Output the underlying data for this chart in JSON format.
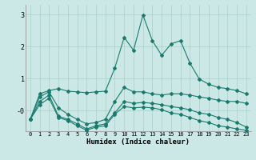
{
  "xlabel": "Humidex (Indice chaleur)",
  "bg_color": "#cce8e6",
  "grid_color": "#aacfcc",
  "line_color": "#1a7a6e",
  "xlim": [
    -0.5,
    23.5
  ],
  "ylim": [
    -0.65,
    3.3
  ],
  "yticks": [
    0,
    1,
    2,
    3
  ],
  "ytick_labels": [
    "-0",
    "1",
    "2",
    "3"
  ],
  "xticks": [
    0,
    1,
    2,
    3,
    4,
    5,
    6,
    7,
    8,
    9,
    10,
    11,
    12,
    13,
    14,
    15,
    16,
    17,
    18,
    19,
    20,
    21,
    22,
    23
  ],
  "series": [
    {
      "x": [
        0,
        1,
        2,
        3,
        4,
        5,
        6,
        7,
        8,
        9,
        10,
        11,
        12,
        13,
        14,
        15,
        16,
        17,
        18,
        19,
        20,
        21,
        22,
        23
      ],
      "y": [
        -0.28,
        0.52,
        0.62,
        0.68,
        0.6,
        0.58,
        0.55,
        0.58,
        0.6,
        1.32,
        2.28,
        1.88,
        2.98,
        2.18,
        1.72,
        2.08,
        2.18,
        1.48,
        0.98,
        0.82,
        0.72,
        0.68,
        0.62,
        0.52
      ]
    },
    {
      "x": [
        0,
        1,
        2,
        3,
        4,
        5,
        6,
        7,
        8,
        9,
        10,
        11,
        12,
        13,
        14,
        15,
        16,
        17,
        18,
        19,
        20,
        21,
        22,
        23
      ],
      "y": [
        -0.28,
        0.42,
        0.58,
        0.08,
        -0.12,
        -0.28,
        -0.42,
        -0.38,
        -0.28,
        0.28,
        0.72,
        0.58,
        0.58,
        0.52,
        0.48,
        0.52,
        0.52,
        0.48,
        0.42,
        0.38,
        0.32,
        0.28,
        0.28,
        0.22
      ]
    },
    {
      "x": [
        0,
        1,
        2,
        3,
        4,
        5,
        6,
        7,
        8,
        9,
        10,
        11,
        12,
        13,
        14,
        15,
        16,
        17,
        18,
        19,
        20,
        21,
        22,
        23
      ],
      "y": [
        -0.28,
        0.28,
        0.48,
        -0.18,
        -0.28,
        -0.42,
        -0.58,
        -0.48,
        -0.42,
        -0.08,
        0.28,
        0.22,
        0.25,
        0.22,
        0.18,
        0.12,
        0.08,
        0.02,
        -0.08,
        -0.12,
        -0.22,
        -0.28,
        -0.38,
        -0.52
      ]
    },
    {
      "x": [
        0,
        1,
        2,
        3,
        4,
        5,
        6,
        7,
        8,
        9,
        10,
        11,
        12,
        13,
        14,
        15,
        16,
        17,
        18,
        19,
        20,
        21,
        22,
        23
      ],
      "y": [
        -0.28,
        0.18,
        0.38,
        -0.22,
        -0.32,
        -0.48,
        -0.62,
        -0.52,
        -0.48,
        -0.12,
        0.12,
        0.08,
        0.1,
        0.08,
        0.02,
        -0.08,
        -0.12,
        -0.22,
        -0.32,
        -0.38,
        -0.48,
        -0.52,
        -0.58,
        -0.62
      ]
    }
  ]
}
